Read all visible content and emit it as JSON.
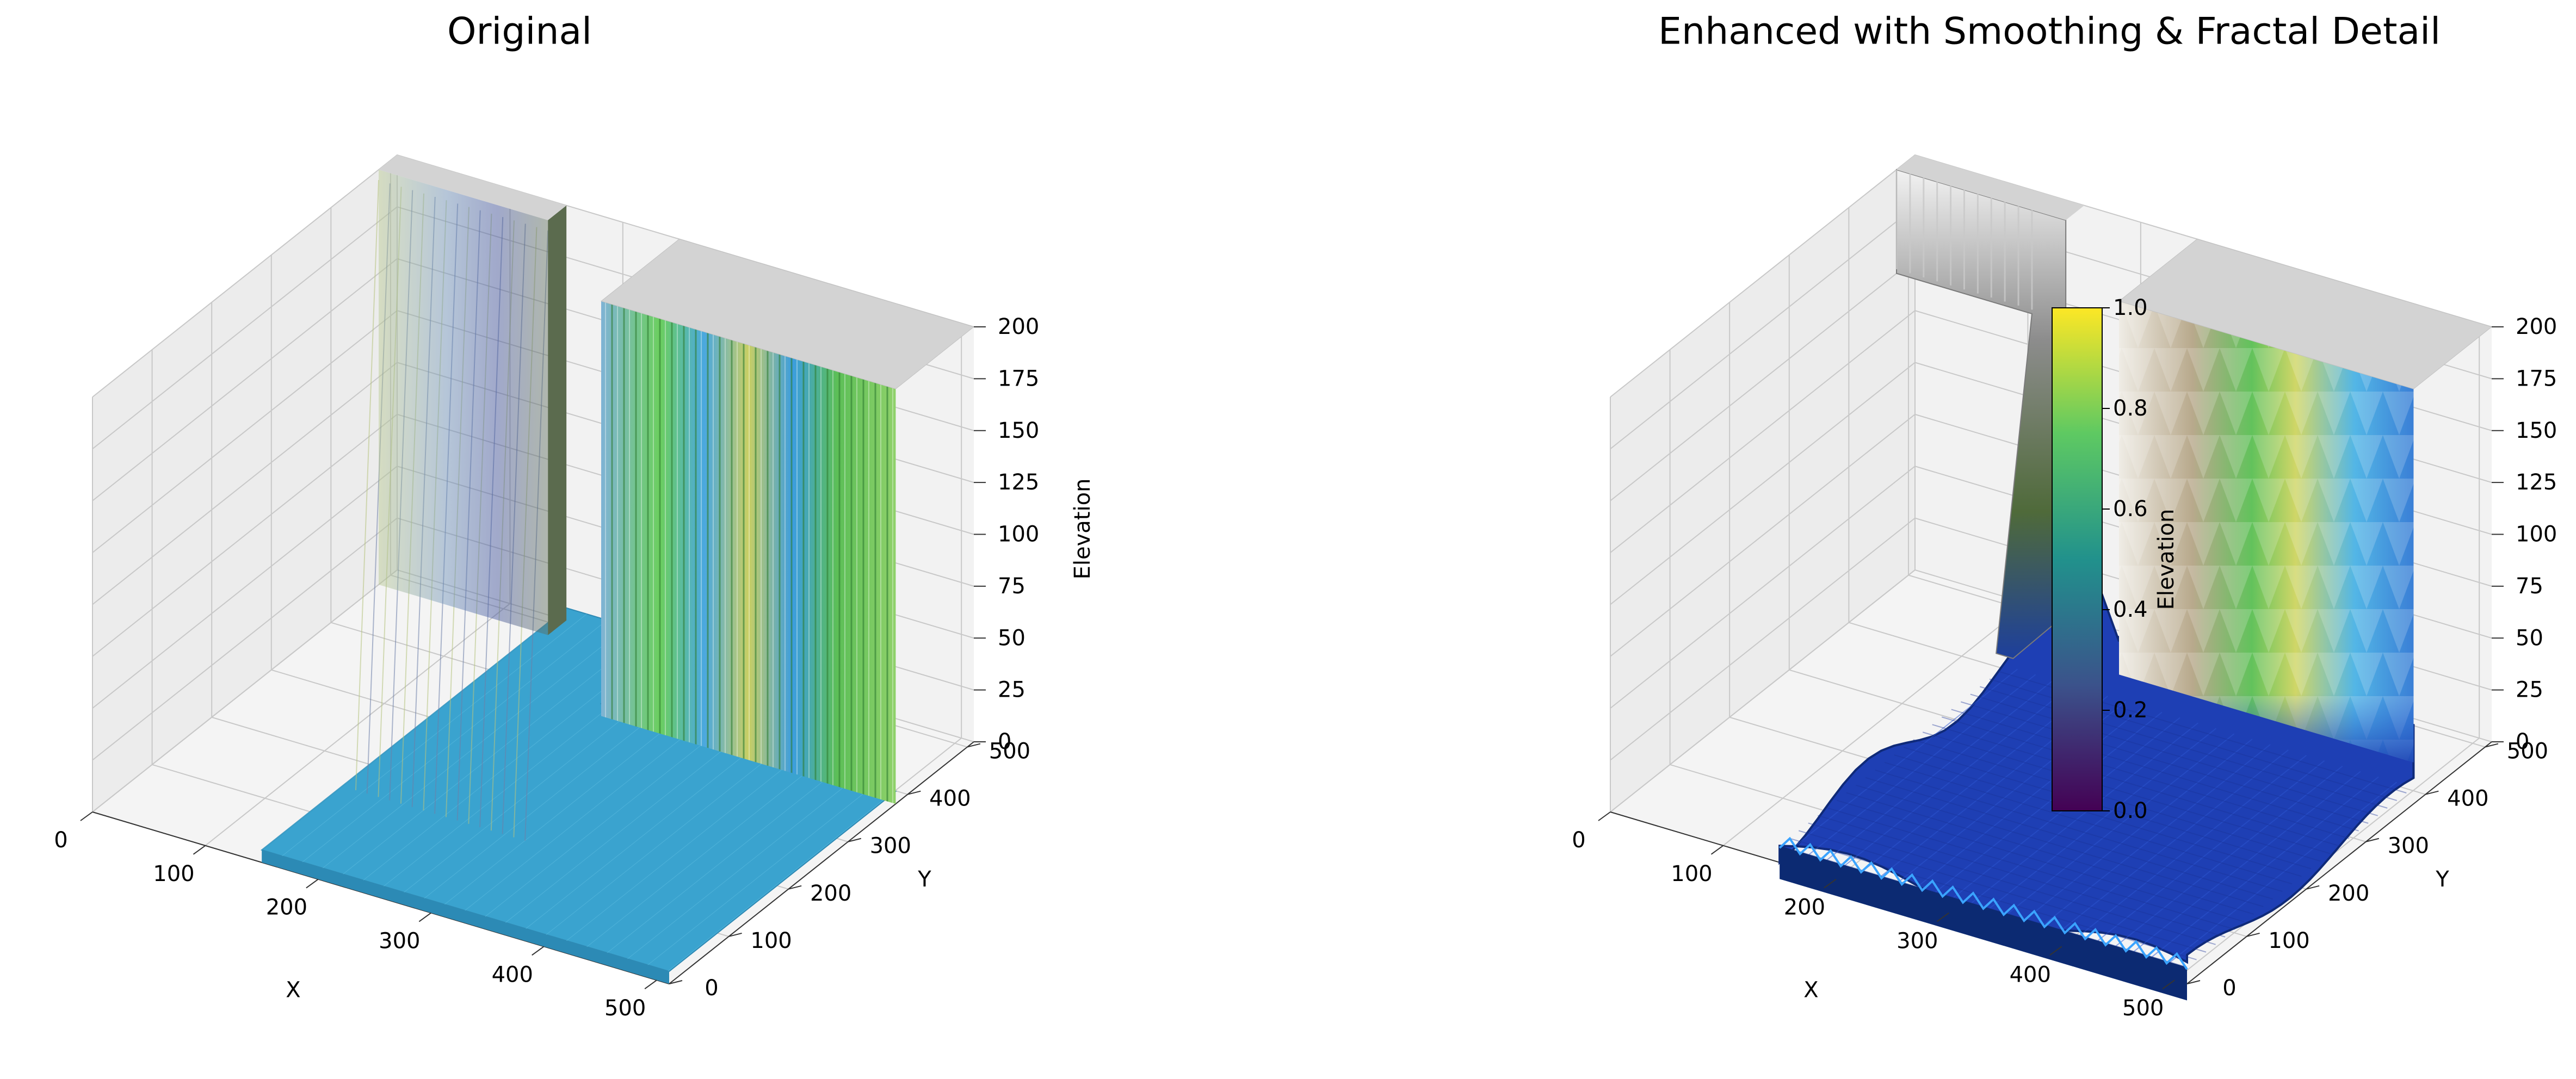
{
  "chart_data": [
    {
      "type": "surface",
      "title": "Original",
      "xlabel": "X",
      "ylabel": "Y",
      "zlabel": "Elevation",
      "xlim": [
        0,
        511
      ],
      "ylim": [
        0,
        511
      ],
      "zlim": [
        0,
        200
      ],
      "xticks": [
        "0",
        "100",
        "200",
        "300",
        "400",
        "500"
      ],
      "yticks": [
        "0",
        "100",
        "200",
        "300",
        "400",
        "500"
      ],
      "zticks": [
        "0",
        "25",
        "50",
        "75",
        "100",
        "125",
        "150",
        "175",
        "200"
      ],
      "grid": true,
      "terrain": {
        "base_elevation": 0,
        "peak_elevation": 200,
        "walls": [
          {
            "region": "x 0-150 along y = 511 edge",
            "elevation": 200
          },
          {
            "region": "x 250-511, y 380-511",
            "elevation": 200
          }
        ]
      },
      "colors": {
        "floor": "#3aa3cf",
        "plateau": "#d3d3d3",
        "wall_mix": [
          "#5ab6e0",
          "#6ccf5f",
          "#cdd45a",
          "#2e7d32",
          "#8d8a7a"
        ]
      }
    },
    {
      "type": "surface",
      "title": "Enhanced with Smoothing & Fractal Detail",
      "xlabel": "X",
      "ylabel": "Y",
      "zlabel": "Elevation",
      "xlim": [
        0,
        511
      ],
      "ylim": [
        0,
        511
      ],
      "zlim": [
        0,
        200
      ],
      "xticks": [
        "0",
        "100",
        "200",
        "300",
        "400",
        "500"
      ],
      "yticks": [
        "0",
        "100",
        "200",
        "300",
        "400",
        "500"
      ],
      "zticks": [
        "0",
        "25",
        "50",
        "75",
        "100",
        "125",
        "150",
        "175",
        "200"
      ],
      "grid": true,
      "terrain": {
        "base_elevation": 0,
        "peak_elevation": 200,
        "walls": [
          {
            "region": "x 0-150 along y = 511 edge",
            "elevation": 200
          },
          {
            "region": "x 250-511, y 380-511",
            "elevation": 200
          }
        ]
      },
      "colors": {
        "floor": "#1e3fb4",
        "plateau": "#d3d3d3",
        "wall_mix": [
          "#e8e6e0",
          "#b9a98a",
          "#5fbf5a",
          "#c9d45a",
          "#3a9de0"
        ]
      },
      "colorbar": {
        "label": "Elevation",
        "range": [
          0,
          1
        ],
        "ticks": [
          "0.0",
          "0.2",
          "0.4",
          "0.6",
          "0.8",
          "1.0"
        ],
        "colormap": "viridis"
      }
    }
  ]
}
